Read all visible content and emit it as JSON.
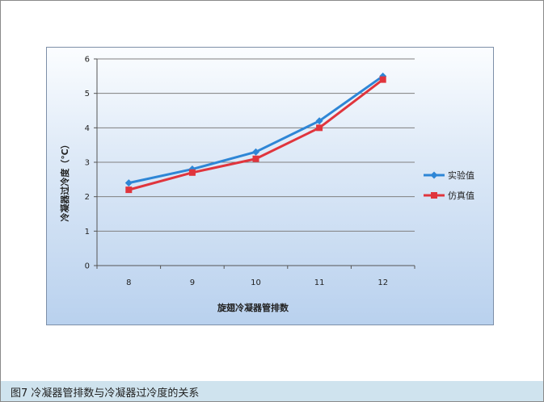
{
  "caption": "图7 冷凝器管排数与冷凝器过冷度的关系",
  "chart_data": {
    "type": "line",
    "title": "",
    "xlabel": "旋翅冷凝器管排数",
    "ylabel": "冷凝器过冷度（℃）",
    "x": [
      8,
      9,
      10,
      11,
      12
    ],
    "ylim": [
      0,
      6
    ],
    "yticks": [
      0,
      1,
      2,
      3,
      4,
      5,
      6
    ],
    "grid": true,
    "legend_position": "right",
    "series": [
      {
        "name": "实验值",
        "values": [
          2.4,
          2.8,
          3.3,
          4.2,
          5.5
        ],
        "color": "#2e86d6",
        "marker": "diamond"
      },
      {
        "name": "仿真值",
        "values": [
          2.2,
          2.7,
          3.1,
          4.0,
          5.4
        ],
        "color": "#e0353d",
        "marker": "square"
      }
    ]
  }
}
